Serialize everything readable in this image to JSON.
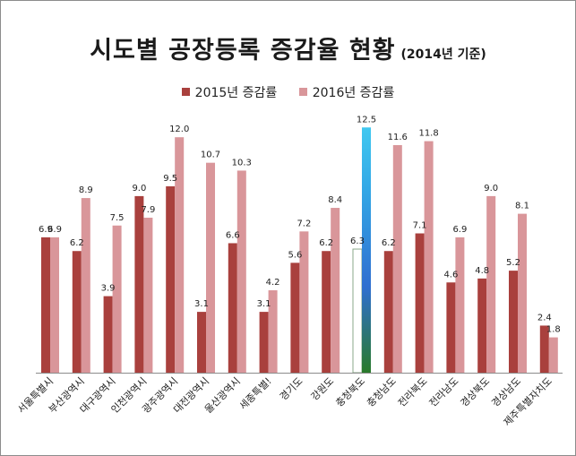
{
  "title": "시도별 공장등록 증감율 현황",
  "subtitle": "(2014년 기준)",
  "chart_data": {
    "type": "bar",
    "title": "시도별 공장등록 증감율 현황",
    "subtitle": "(2014년 기준)",
    "legend_position": "top",
    "grid": false,
    "ylim": [
      0,
      14
    ],
    "categories": [
      "서울특별시",
      "부산광역시",
      "대구광역시",
      "인천광역시",
      "광주광역시",
      "대전광역시",
      "울산광역시",
      "세종특별!",
      "경기도",
      "강원도",
      "충청북도",
      "충청남도",
      "전라북도",
      "전라남도",
      "경상북도",
      "경상남도",
      "제주특별자치도"
    ],
    "series": [
      {
        "name": "2015년 증감률",
        "color": "#a9403d",
        "values": [
          6.9,
          6.2,
          3.9,
          9.0,
          9.5,
          3.1,
          6.6,
          3.1,
          5.6,
          6.2,
          6.3,
          6.2,
          7.1,
          4.6,
          4.8,
          5.2,
          2.4
        ],
        "labels": [
          "6.9",
          "6.2",
          "3.9",
          "9.0",
          "9.5",
          "3.1",
          "6.6",
          "3.1",
          "5.6",
          "6.2",
          "6.3",
          "6.2",
          "7.1",
          "4.6",
          "4.8",
          "5.2",
          "2.4"
        ]
      },
      {
        "name": "2016년 증감률",
        "color": "#d9969a",
        "values": [
          6.9,
          8.9,
          7.5,
          7.9,
          12.0,
          10.7,
          10.3,
          4.2,
          7.2,
          8.4,
          12.5,
          11.6,
          11.8,
          6.9,
          9.0,
          8.1,
          1.8
        ],
        "labels": [
          "6.9",
          "8.9",
          "7.5",
          "7.9",
          "12.0",
          "10.7",
          "10.3",
          "4.2",
          "7.2",
          "8.4",
          "12.5",
          "11.6",
          "11.8",
          "6.9",
          "9.0",
          "8.1",
          "1.8"
        ]
      }
    ],
    "highlight": {
      "category": "충청북도",
      "gradient_colors": [
        "#2a7a2a",
        "#2f6fd0",
        "#33a8e6",
        "#40c8f0"
      ],
      "outline_color": "#8aa88a"
    },
    "axis_color": "#8c8c8c"
  }
}
